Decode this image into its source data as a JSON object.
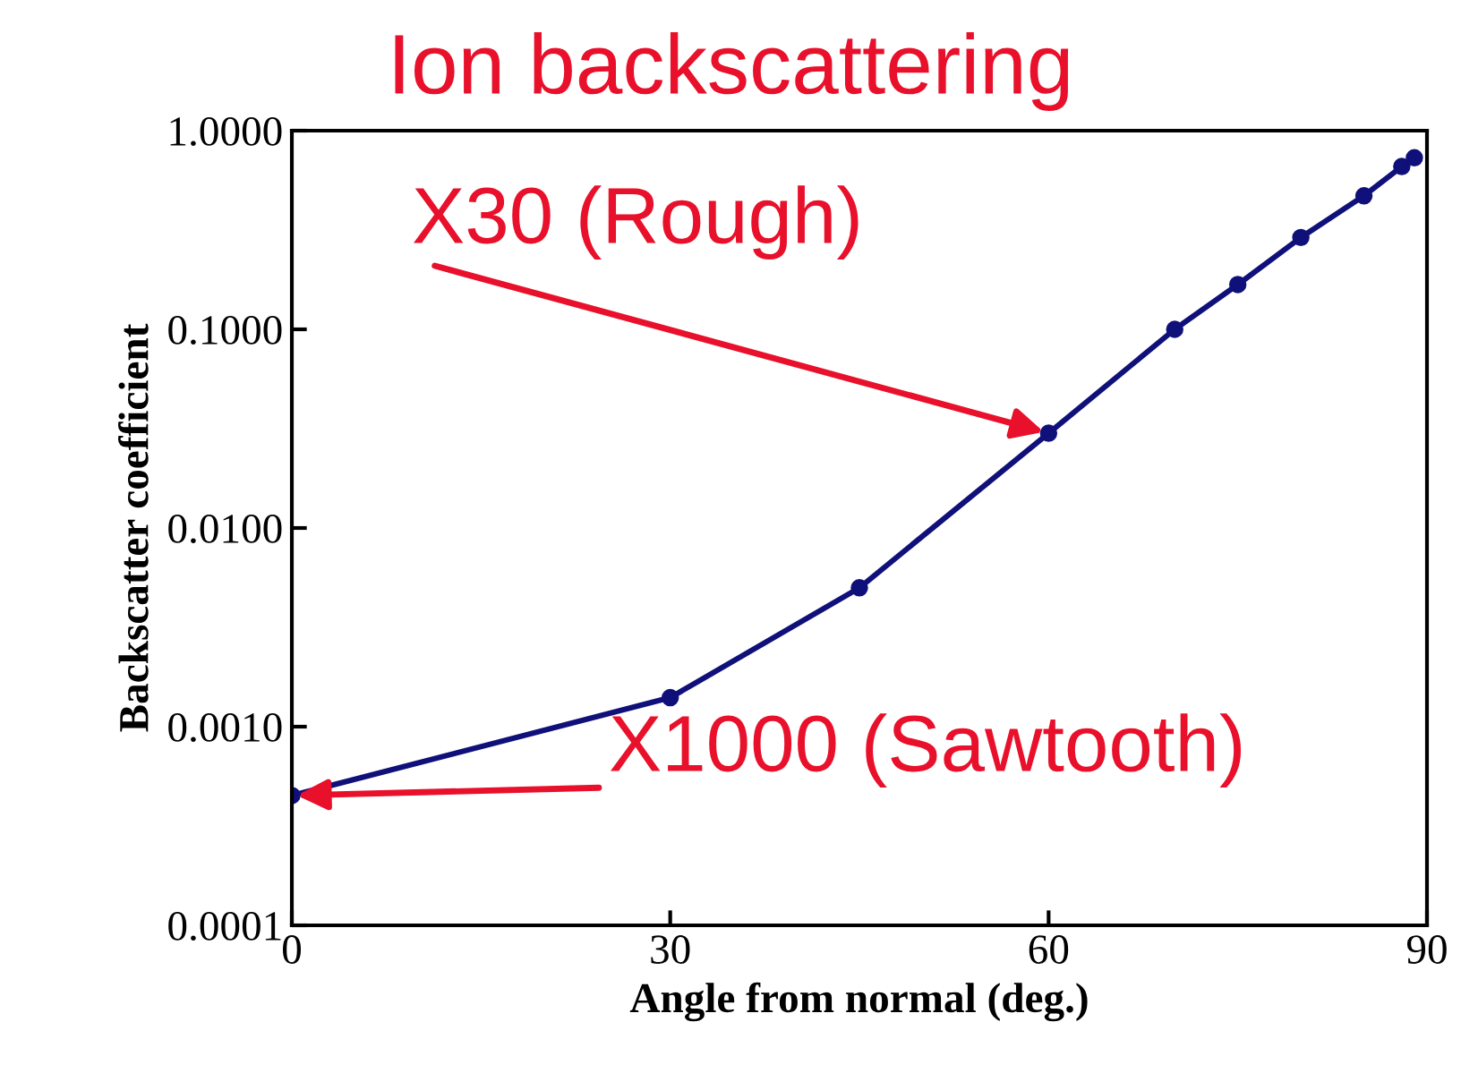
{
  "chart_data": {
    "type": "line",
    "title": "Ion backscattering",
    "xlabel": "Angle from normal (deg.)",
    "ylabel": "Backscatter coefficient",
    "x": [
      0,
      30,
      45,
      60,
      70,
      75,
      80,
      85,
      88,
      89
    ],
    "series": [
      {
        "color": "#10107a",
        "values": [
          0.00045,
          0.0014,
          0.005,
          0.03,
          0.1,
          0.168,
          0.29,
          0.47,
          0.66,
          0.73
        ]
      }
    ],
    "xlim": [
      0,
      90
    ],
    "xticks": [
      0,
      30,
      60,
      90
    ],
    "ylim": [
      0.0001,
      1
    ],
    "log": true,
    "yticks": [
      {
        "value": 0.0001,
        "label": "0.0001"
      },
      {
        "value": 0.001,
        "label": "0.0010"
      },
      {
        "value": 0.01,
        "label": "0.0100"
      },
      {
        "value": 0.1,
        "label": "0.1000"
      },
      {
        "value": 1,
        "label": "1.0000"
      }
    ],
    "grid": false,
    "marker": "circle",
    "line_style": "solid",
    "annotations": [
      {
        "text": "X30 (Rough)",
        "x": 60,
        "y": 0.03
      },
      {
        "text": "X1000 (Sawtooth)",
        "x": 0,
        "y": 0.00045
      }
    ]
  }
}
